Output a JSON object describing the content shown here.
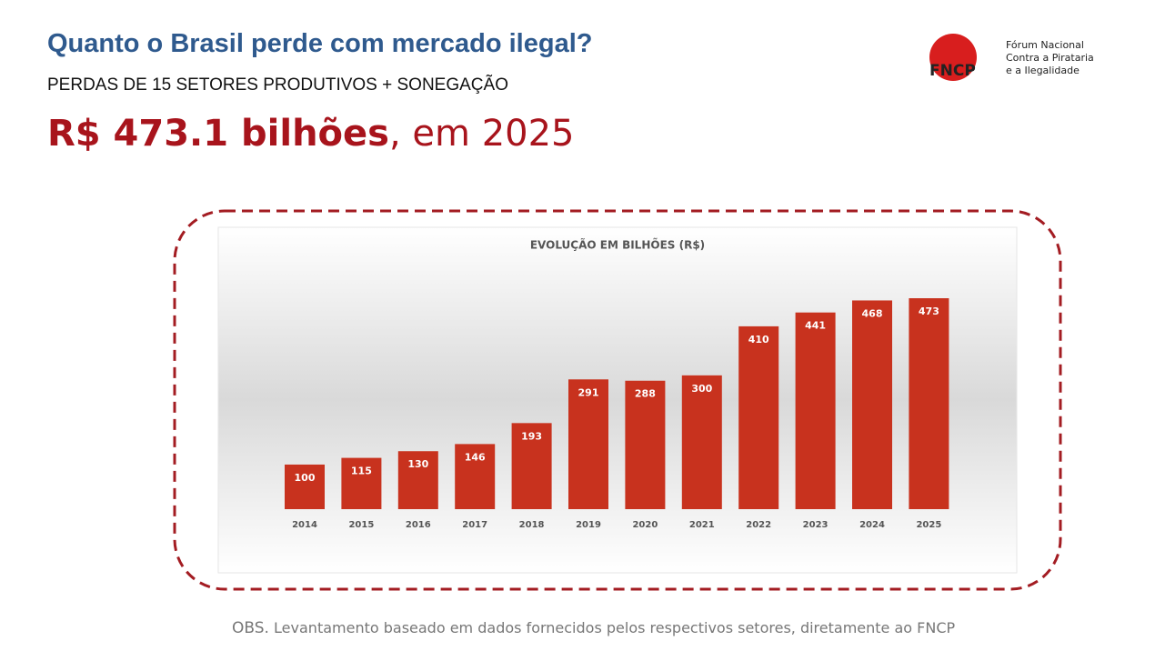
{
  "header": {
    "title": "Quanto o Brasil perde com mercado ilegal?",
    "subtitle": "PERDAS DE 15 SETORES PRODUTIVOS + SONEGAÇÃO",
    "highlight": "R$ 473.1 bilhões",
    "highlight_suffix": ", em 2025"
  },
  "logo": {
    "acronym": "FNCP",
    "lines": [
      "Fórum Nacional",
      "Contra a Pirataria",
      "e a Ilegalidade"
    ]
  },
  "note": {
    "prefix": "OBS.",
    "text": "Levantamento baseado em dados fornecidos pelos respectivos setores, diretamente ao FNCP"
  },
  "chart_data": {
    "type": "bar",
    "title": "EVOLUÇÃO EM BILHÕES (R$)",
    "categories": [
      "2014",
      "2015",
      "2016",
      "2017",
      "2018",
      "2019",
      "2020",
      "2021",
      "2022",
      "2023",
      "2024",
      "2025"
    ],
    "values": [
      100,
      115,
      130,
      146,
      193,
      291,
      288,
      300,
      410,
      441,
      468,
      473
    ],
    "color": "#c8321e"
  }
}
